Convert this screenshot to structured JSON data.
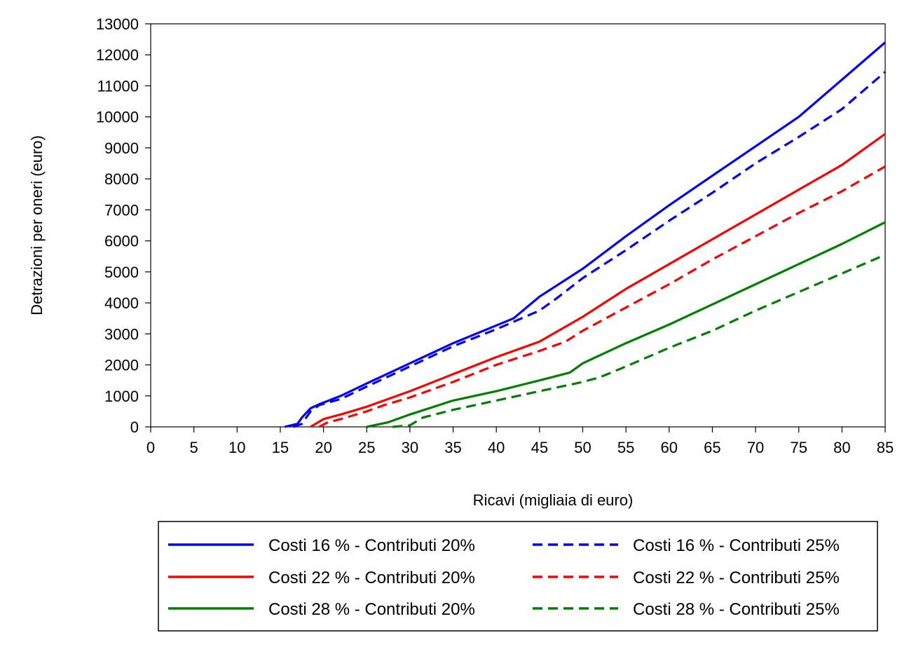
{
  "chart_data": {
    "type": "line",
    "title": "",
    "xlabel": "Ricavi (migliaia di euro)",
    "ylabel": "Detrazioni per oneri (euro)",
    "xlim": [
      0,
      85
    ],
    "ylim": [
      0,
      13000
    ],
    "x_ticks": [
      "0",
      "5",
      "10",
      "15",
      "20",
      "25",
      "30",
      "35",
      "40",
      "45",
      "50",
      "55",
      "60",
      "65",
      "70",
      "75",
      "80",
      "85"
    ],
    "y_ticks": [
      "0",
      "1000",
      "2000",
      "3000",
      "4000",
      "5000",
      "6000",
      "7000",
      "8000",
      "9000",
      "10000",
      "11000",
      "12000",
      "13000"
    ],
    "grid": false,
    "legend_position": "bottom",
    "series": [
      {
        "name": "Costi 16 % - Contributi 20%",
        "color": "#0000ff",
        "dash": "solid",
        "x": [
          15.5,
          17,
          17.5,
          18.5,
          19.5,
          22,
          25,
          30,
          35,
          42,
          45,
          50,
          55,
          60,
          65,
          70,
          75,
          80,
          85
        ],
        "y": [
          0,
          100,
          300,
          600,
          730,
          1000,
          1400,
          2050,
          2700,
          3500,
          4200,
          5100,
          6150,
          7150,
          8100,
          9050,
          10000,
          11200,
          12400
        ]
      },
      {
        "name": "Costi 16 % - Contributi 25%",
        "color": "#0000ff",
        "dash": "dashed",
        "x": [
          16.5,
          17.5,
          18.5,
          19.5,
          22,
          25,
          30,
          35,
          40,
          45,
          47,
          50,
          55,
          60,
          65,
          70,
          75,
          80,
          85
        ],
        "y": [
          0,
          100,
          500,
          700,
          900,
          1300,
          1950,
          2600,
          3150,
          3750,
          4150,
          4800,
          5700,
          6650,
          7550,
          8500,
          9350,
          10250,
          11450
        ]
      },
      {
        "name": "Costi 22 % - Contributi 20%",
        "color": "#ff0000",
        "dash": "solid",
        "x": [
          18.5,
          20,
          22,
          25,
          27,
          30,
          35,
          40,
          45,
          50,
          55,
          60,
          65,
          70,
          75,
          80,
          85
        ],
        "y": [
          0,
          250,
          400,
          650,
          850,
          1150,
          1700,
          2250,
          2750,
          3550,
          4450,
          5250,
          6050,
          6850,
          7650,
          8450,
          9450
        ]
      },
      {
        "name": "Costi 22 % - Contributi 25%",
        "color": "#ff0000",
        "dash": "dashed",
        "x": [
          19.5,
          20.5,
          22,
          25,
          27,
          30,
          35,
          40,
          45,
          48,
          50,
          55,
          60,
          65,
          70,
          75,
          80,
          85
        ],
        "y": [
          0,
          150,
          250,
          500,
          700,
          950,
          1450,
          2000,
          2450,
          2750,
          3100,
          3850,
          4600,
          5400,
          6150,
          6900,
          7600,
          8400
        ]
      },
      {
        "name": "Costi 28 % - Contributi 20%",
        "color": "#008000",
        "dash": "solid",
        "x": [
          25,
          27.5,
          30,
          35,
          40,
          45,
          48.5,
          50,
          55,
          60,
          65,
          70,
          75,
          80,
          85
        ],
        "y": [
          0,
          150,
          400,
          850,
          1150,
          1500,
          1750,
          2050,
          2700,
          3300,
          3950,
          4600,
          5250,
          5900,
          6600
        ]
      },
      {
        "name": "Costi 28 % - Contributi 25%",
        "color": "#008000",
        "dash": "dashed",
        "x": [
          28,
          30,
          31.5,
          35,
          40,
          45,
          50,
          52,
          55,
          60,
          65,
          70,
          75,
          80,
          85
        ],
        "y": [
          0,
          50,
          300,
          550,
          850,
          1150,
          1450,
          1600,
          1950,
          2550,
          3100,
          3750,
          4350,
          4950,
          5550
        ]
      }
    ]
  }
}
